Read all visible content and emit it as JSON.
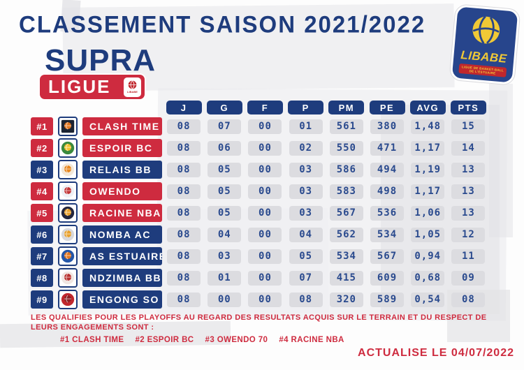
{
  "page": {
    "title": "CLASSEMENT SAISON 2021/2022",
    "updated": "ACTUALISE LE 04/07/2022"
  },
  "brand": {
    "competition_line1": "SUPRA",
    "competition_line2": "LIGUE",
    "league_logo": {
      "name": "LIBABE",
      "subtitle_line1": "LIGUE DE BASKET-BALL",
      "subtitle_line2": "DE L'ESTUAIRE",
      "mini_badge_name": "LIBABE"
    }
  },
  "colors": {
    "navy": "#1e3c7d",
    "red": "#ce2b3f",
    "value_text": "#2a4a8e",
    "pill_bg": "#dcdce0",
    "logo_blue": "#27458c",
    "logo_yellow": "#f0c936"
  },
  "table": {
    "columns": [
      "J",
      "G",
      "F",
      "P",
      "PM",
      "PE",
      "AVG",
      "PTS"
    ],
    "rows": [
      {
        "rank": "#1",
        "team": "CLASH TIME",
        "qualified": true,
        "values": [
          "08",
          "07",
          "00",
          "01",
          "561",
          "380",
          "1,48",
          "15"
        ],
        "logo": {
          "shape": "square",
          "primary": "#1c2433",
          "accent": "#e2761f"
        }
      },
      {
        "rank": "#2",
        "team": "ESPOIR BC",
        "qualified": true,
        "values": [
          "08",
          "06",
          "00",
          "02",
          "550",
          "471",
          "1,17",
          "14"
        ],
        "logo": {
          "shape": "circle",
          "primary": "#3a8a3d",
          "accent": "#f2c12e"
        }
      },
      {
        "rank": "#3",
        "team": "RELAIS BB",
        "qualified": false,
        "values": [
          "08",
          "05",
          "00",
          "03",
          "586",
          "494",
          "1,19",
          "13"
        ],
        "logo": {
          "shape": "circle",
          "primary": "#f3e8d8",
          "accent": "#e8871f"
        }
      },
      {
        "rank": "#4",
        "team": "OWENDO",
        "qualified": true,
        "values": [
          "08",
          "05",
          "00",
          "03",
          "583",
          "498",
          "1,17",
          "13"
        ],
        "logo": {
          "shape": "circle",
          "primary": "#eef0f5",
          "accent": "#c23435"
        }
      },
      {
        "rank": "#5",
        "team": "RACINE NBA",
        "qualified": true,
        "values": [
          "08",
          "05",
          "00",
          "03",
          "567",
          "536",
          "1,06",
          "13"
        ],
        "logo": {
          "shape": "circle",
          "primary": "#23263f",
          "accent": "#e8a02c"
        }
      },
      {
        "rank": "#6",
        "team": "NOMBA AC",
        "qualified": false,
        "values": [
          "08",
          "04",
          "00",
          "04",
          "562",
          "534",
          "1,05",
          "12"
        ],
        "logo": {
          "shape": "circle",
          "primary": "#d8d8dc",
          "accent": "#e8a02c"
        }
      },
      {
        "rank": "#7",
        "team": "AS ESTUAIRE",
        "qualified": false,
        "values": [
          "08",
          "03",
          "00",
          "05",
          "534",
          "567",
          "0,94",
          "11"
        ],
        "logo": {
          "shape": "circle",
          "primary": "#2456a8",
          "accent": "#e2761f"
        }
      },
      {
        "rank": "#8",
        "team": "NDZIMBA BB",
        "qualified": false,
        "values": [
          "08",
          "01",
          "00",
          "07",
          "415",
          "609",
          "0,68",
          "09"
        ],
        "logo": {
          "shape": "circle",
          "primary": "#f0e6e2",
          "accent": "#b8302e"
        }
      },
      {
        "rank": "#9",
        "team": "ENGONG SO",
        "qualified": false,
        "values": [
          "08",
          "00",
          "00",
          "08",
          "320",
          "589",
          "0,54",
          "08"
        ],
        "logo": {
          "shape": "circle",
          "primary": "#c0272d",
          "accent": "#8e1e22"
        }
      }
    ]
  },
  "footer": {
    "note": "LES QUALIFIES POUR LES PLAYOFFS AU REGARD DES RESULTATS ACQUIS SUR LE TERRAIN ET DU RESPECT DE LEURS ENGAGEMENTS SONT :",
    "qualifiers": [
      "#1 CLASH TIME",
      "#2 ESPOIR BC",
      "#3 OWENDO 70",
      "#4 RACINE NBA"
    ]
  }
}
